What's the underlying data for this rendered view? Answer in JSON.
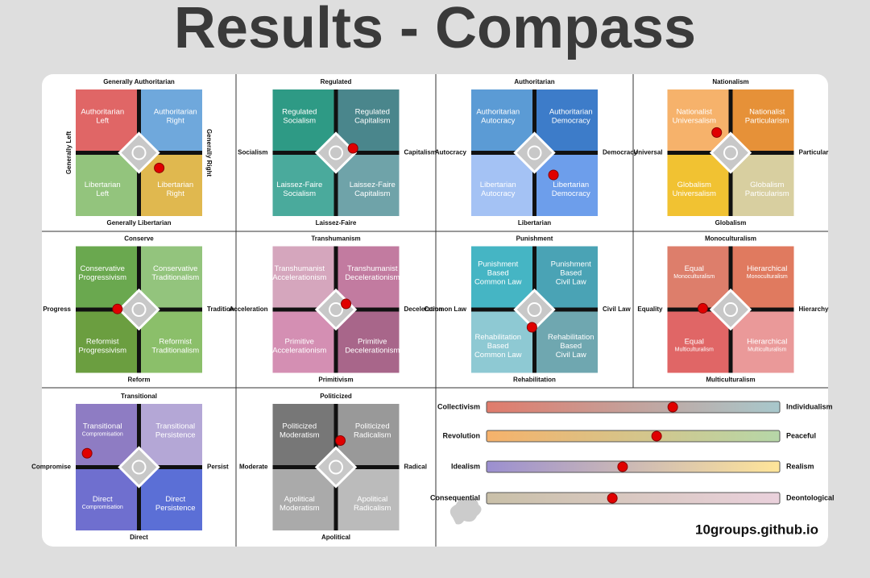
{
  "title": "Results - Compass",
  "compasses": [
    {
      "top": "Generally Authoritarian",
      "bottom": "Generally Libertarian",
      "left": "Generally Left",
      "right": "Generally Right",
      "vertical_sides": true,
      "quadrants": [
        {
          "label": [
            "Authoritarian",
            "Left"
          ],
          "color": "#e06666"
        },
        {
          "label": [
            "Authoritarian",
            "Right"
          ],
          "color": "#6fa8dc"
        },
        {
          "label": [
            "Libertarian",
            "Left"
          ],
          "color": "#93c47d"
        },
        {
          "label": [
            "Libertarian",
            "Right"
          ],
          "color": "#e0b84f"
        }
      ],
      "result": {
        "x": 32,
        "y": -24
      }
    },
    {
      "top": "Regulated",
      "bottom": "Laissez-Faire",
      "left": "Socialism",
      "right": "Capitalism",
      "quadrants": [
        {
          "label": [
            "Regulated",
            "Socialism"
          ],
          "color": "#2e9a85"
        },
        {
          "label": [
            "Regulated",
            "Capitalism"
          ],
          "color": "#4a868c"
        },
        {
          "label": [
            "Laissez-Faire",
            "Socialism"
          ],
          "color": "#4aaa9c"
        },
        {
          "label": [
            "Laissez-Faire",
            "Capitalism"
          ],
          "color": "#6fa3a9"
        }
      ],
      "result": {
        "x": 27,
        "y": 7
      }
    },
    {
      "top": "Authoritarian",
      "bottom": "Libertarian",
      "left": "Autocracy",
      "right": "Democracy",
      "quadrants": [
        {
          "label": [
            "Authoritarian",
            "Autocracy"
          ],
          "color": "#5b9bd5"
        },
        {
          "label": [
            "Authoritarian",
            "Democracy"
          ],
          "color": "#3d7cc9"
        },
        {
          "label": [
            "Libertarian",
            "Autocracy"
          ],
          "color": "#a4c2f4"
        },
        {
          "label": [
            "Libertarian",
            "Democracy"
          ],
          "color": "#6d9eeb"
        }
      ],
      "result": {
        "x": 30,
        "y": -35
      }
    },
    {
      "top": "Nationalism",
      "bottom": "Globalism",
      "left": "Universal",
      "right": "Particular",
      "quadrants": [
        {
          "label": [
            "Nationalist",
            "Universalism"
          ],
          "color": "#f6b26b"
        },
        {
          "label": [
            "Nationalist",
            "Particularism"
          ],
          "color": "#e69138"
        },
        {
          "label": [
            "Globalism",
            "Universalism"
          ],
          "color": "#f1c232"
        },
        {
          "label": [
            "Globalism",
            "Particularism"
          ],
          "color": "#d8cfa0"
        }
      ],
      "result": {
        "x": -22,
        "y": 32
      }
    },
    {
      "top": "Conserve",
      "bottom": "Reform",
      "left": "Progress",
      "right": "Tradition",
      "quadrants": [
        {
          "label": [
            "Conservative",
            "Progressivism"
          ],
          "color": "#6aa84f"
        },
        {
          "label": [
            "Conservative",
            "Traditionalism"
          ],
          "color": "#93c47d"
        },
        {
          "label": [
            "Reformist",
            "Progressivism"
          ],
          "color": "#6b9e40"
        },
        {
          "label": [
            "Reformist",
            "Traditionalism"
          ],
          "color": "#8bbf6a"
        }
      ],
      "result": {
        "x": -34,
        "y": 1
      }
    },
    {
      "top": "Transhumanism",
      "bottom": "Primitivism",
      "left": "Acceleration",
      "right": "Deceleration",
      "quadrants": [
        {
          "label": [
            "Transhumanist",
            "Accelerationism"
          ],
          "color": "#d5a6bd"
        },
        {
          "label": [
            "Transhumanist",
            "Decelerationism"
          ],
          "color": "#c27ba0"
        },
        {
          "label": [
            "Primitive",
            "Accelerationism"
          ],
          "color": "#d48fb3"
        },
        {
          "label": [
            "Primitive",
            "Decelerationism"
          ],
          "color": "#a8668a"
        }
      ],
      "result": {
        "x": 16,
        "y": 9
      }
    },
    {
      "top": "Punishment",
      "bottom": "Rehabilitation",
      "left": "Common Law",
      "right": "Civil Law",
      "quadrants": [
        {
          "label": [
            "Punishment",
            "Based",
            "Common Law"
          ],
          "color": "#45b5c4"
        },
        {
          "label": [
            "Punishment",
            "Based",
            "Civil Law"
          ],
          "color": "#4aa3b5"
        },
        {
          "label": [
            "Rehabilitation",
            "Based",
            "Common Law"
          ],
          "color": "#8ec9d3"
        },
        {
          "label": [
            "Rehabilitation",
            "Based",
            "Civil Law"
          ],
          "color": "#6fa7b0"
        }
      ],
      "result": {
        "x": -4,
        "y": -28
      }
    },
    {
      "top": "Monoculturalism",
      "bottom": "Multiculturalism",
      "left": "Equality",
      "right": "Hierarchy",
      "quadrants": [
        {
          "label": [
            "Equal"
          ],
          "sublabel": "Monoculturalism",
          "color": "#dd7e6b"
        },
        {
          "label": [
            "Hierarchical"
          ],
          "sublabel": "Monoculturalism",
          "color": "#e07a5f"
        },
        {
          "label": [
            "Equal"
          ],
          "sublabel": "Multiculturalism",
          "color": "#e06666"
        },
        {
          "label": [
            "Hierarchical"
          ],
          "sublabel": "Multiculturalism",
          "color": "#ea9999"
        }
      ],
      "result": {
        "x": -44,
        "y": 2
      }
    },
    {
      "top": "Transitional",
      "bottom": "Direct",
      "left": "Compromise",
      "right": "Persist",
      "quadrants": [
        {
          "label": [
            "Transitional"
          ],
          "sublabel": "Compromisation",
          "color": "#8e7cc3"
        },
        {
          "label": [
            "Transitional",
            "Persistence"
          ],
          "color": "#b4a7d6"
        },
        {
          "label": [
            "Direct"
          ],
          "sublabel": "Compromisation",
          "color": "#6f6fcf"
        },
        {
          "label": [
            "Direct",
            "Persistence"
          ],
          "color": "#5b6fd6"
        }
      ],
      "result": {
        "x": -82,
        "y": 22
      }
    },
    {
      "top": "Politicized",
      "bottom": "Apolitical",
      "left": "Moderate",
      "right": "Radical",
      "quadrants": [
        {
          "label": [
            "Politicized",
            "Moderatism"
          ],
          "color": "#777777"
        },
        {
          "label": [
            "Politicized",
            "Radicalism"
          ],
          "color": "#999999"
        },
        {
          "label": [
            "Apolitical",
            "Moderatism"
          ],
          "color": "#aaaaaa"
        },
        {
          "label": [
            "Apolitical",
            "Radicalism"
          ],
          "color": "#bbbbbb"
        }
      ],
      "result": {
        "x": 7,
        "y": 42
      }
    }
  ],
  "sliders": [
    {
      "left": "Collectivism",
      "right": "Individualism",
      "value": 63.5,
      "colors": [
        "#e07b6b",
        "#a8c8cc"
      ]
    },
    {
      "left": "Revolution",
      "right": "Peaceful",
      "value": 58,
      "colors": [
        "#f6b26b",
        "#b6d7a8"
      ]
    },
    {
      "left": "Idealism",
      "right": "Realism",
      "value": 46.4,
      "colors": [
        "#9b8fd0",
        "#ffe599"
      ]
    },
    {
      "left": "Consequential",
      "right": "Deontological",
      "value": 42.9,
      "colors": [
        "#c9c0a8",
        "#ead1dc"
      ]
    }
  ],
  "site": "10groups.github.io"
}
